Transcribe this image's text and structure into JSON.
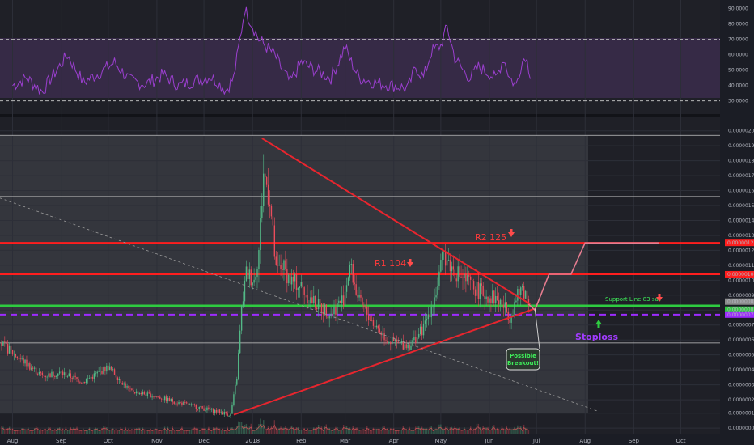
{
  "chart_data": [
    {
      "type": "line",
      "panel": "oscillator",
      "yticks": [
        "90.0000",
        "80.0000",
        "70.0000",
        "60.0000",
        "50.0000",
        "40.0000",
        "30.0000"
      ],
      "ylim": [
        23,
        93
      ],
      "overbought": 70,
      "oversold": 30,
      "series_color": "#9b3fcf",
      "series": [
        {
          "x": [
            "2017-08-01",
            "2017-08-10",
            "2017-08-20",
            "2017-08-25",
            "2017-09-05",
            "2017-09-15",
            "2017-09-25",
            "2017-10-05",
            "2017-10-15",
            "2017-10-25",
            "2017-11-05",
            "2017-11-15",
            "2017-11-25",
            "2017-12-05",
            "2017-12-10",
            "2017-12-15",
            "2017-12-20",
            "2017-12-24",
            "2017-12-27",
            "2018-01-01",
            "2018-01-05",
            "2018-01-10",
            "2018-01-15",
            "2018-01-20",
            "2018-01-25",
            "2018-02-01",
            "2018-02-10",
            "2018-02-20",
            "2018-03-01",
            "2018-03-05",
            "2018-03-10",
            "2018-03-20",
            "2018-04-01",
            "2018-04-10",
            "2018-04-15",
            "2018-04-20",
            "2018-04-25",
            "2018-05-01",
            "2018-05-05",
            "2018-05-10",
            "2018-05-15",
            "2018-05-20",
            "2018-05-25",
            "2018-06-01",
            "2018-06-05",
            "2018-06-10",
            "2018-06-14",
            "2018-06-18",
            "2018-06-21",
            "2018-06-24",
            "2018-06-27"
          ],
          "values": [
            40,
            45,
            36,
            44,
            60,
            42,
            48,
            55,
            43,
            41,
            47,
            40,
            43,
            46,
            42,
            37,
            45,
            70,
            90,
            79,
            70,
            65,
            60,
            50,
            42,
            55,
            50,
            45,
            65,
            55,
            45,
            42,
            40,
            38,
            52,
            45,
            62,
            66,
            78,
            58,
            50,
            45,
            52,
            48,
            44,
            58,
            45,
            40,
            53,
            60,
            48
          ]
        }
      ]
    },
    {
      "type": "line",
      "panel": "price",
      "yticks": [
        "0.00000200",
        "0.00000190",
        "0.00000180",
        "0.00000170",
        "0.00000160",
        "0.00000150",
        "0.00000140",
        "0.00000130",
        "0.00000120",
        "0.00000110",
        "0.00000100",
        "0.00000090",
        "0.00000080",
        "0.00000070",
        "0.00000060",
        "0.00000050",
        "0.00000040",
        "0.00000030",
        "0.00000020",
        "0.00000011",
        "0.00000001"
      ],
      "ylim": [
        0,
        202
      ],
      "x_labels": [
        "Aug",
        "Sep",
        "Oct",
        "Nov",
        "Dec",
        "2018",
        "Feb",
        "Mar",
        "Apr",
        "May",
        "Jun",
        "Jul",
        "Aug",
        "Sep",
        "Oct"
      ],
      "x_label_dates": [
        "2017-08-01",
        "2017-09-01",
        "2017-10-01",
        "2017-11-01",
        "2017-12-01",
        "2018-01-01",
        "2018-02-01",
        "2018-03-01",
        "2018-04-01",
        "2018-05-01",
        "2018-06-01",
        "2018-07-01",
        "2018-08-01",
        "2018-09-01",
        "2018-10-01"
      ],
      "x_range": [
        "2017-07-24",
        "2018-10-26"
      ],
      "projection_start": "2018-06-26",
      "up_color": "#53b987",
      "down_color": "#eb4d5c",
      "price": {
        "x": [
          "2017-07-24",
          "2017-08-05",
          "2017-08-20",
          "2017-09-01",
          "2017-09-15",
          "2017-10-01",
          "2017-10-15",
          "2017-11-01",
          "2017-11-15",
          "2017-12-01",
          "2017-12-10",
          "2017-12-18",
          "2017-12-22",
          "2017-12-25",
          "2017-12-28",
          "2018-01-02",
          "2018-01-05",
          "2018-01-08",
          "2018-01-12",
          "2018-01-16",
          "2018-01-20",
          "2018-01-25",
          "2018-02-01",
          "2018-02-06",
          "2018-02-12",
          "2018-02-20",
          "2018-02-28",
          "2018-03-04",
          "2018-03-10",
          "2018-03-20",
          "2018-03-28",
          "2018-04-05",
          "2018-04-12",
          "2018-04-20",
          "2018-04-28",
          "2018-05-03",
          "2018-05-08",
          "2018-05-15",
          "2018-05-22",
          "2018-05-30",
          "2018-06-05",
          "2018-06-10",
          "2018-06-14",
          "2018-06-18",
          "2018-06-22",
          "2018-06-26"
        ],
        "values": [
          58,
          48,
          36,
          38,
          32,
          42,
          26,
          22,
          18,
          14,
          12,
          10,
          35,
          80,
          105,
          100,
          120,
          172,
          155,
          105,
          110,
          100,
          96,
          88,
          83,
          78,
          88,
          110,
          85,
          70,
          60,
          57,
          57,
          68,
          92,
          118,
          108,
          102,
          95,
          90,
          88,
          83,
          76,
          87,
          95,
          86
        ]
      }
    }
  ],
  "horizontal_levels": [
    {
      "value": 197,
      "color": "#c8c8c8",
      "style": "solid"
    },
    {
      "value": 156,
      "color": "#c8c8c8",
      "style": "solid"
    },
    {
      "value": 125,
      "color": "#ff1e1e",
      "style": "solid",
      "label": "R2 125",
      "axis_badge": "0.00000125"
    },
    {
      "value": 104,
      "color": "#ff1e1e",
      "style": "solid",
      "label": "R1 104",
      "axis_badge": "0.00000104"
    },
    {
      "value": 83,
      "color": "#2ecc40",
      "style": "solid",
      "label": "Support Line 83 sat",
      "axis_badge_dark": "0.00000084",
      "axis_badge": "0.00000083"
    },
    {
      "value": 77,
      "color": "#9d2bff",
      "style": "dashed",
      "axis_badge": "0.00000077"
    },
    {
      "value": 58,
      "color": "#c8c8c8",
      "style": "solid"
    }
  ],
  "trendlines": [
    {
      "name": "descending-resistance",
      "color": "#e8252e",
      "from": [
        "2018-01-07",
        195
      ],
      "to": [
        "2018-06-27",
        84
      ]
    },
    {
      "name": "ascending-support",
      "color": "#e8252e",
      "from": [
        "2017-12-20",
        10
      ],
      "to": [
        "2018-06-30",
        81
      ]
    },
    {
      "name": "long-term-dashed",
      "color": "#9a9a9a",
      "from": [
        "2017-07-24",
        155
      ],
      "to": [
        "2018-08-10",
        12
      ]
    }
  ],
  "annotations": {
    "r2": "R2 125",
    "r1": "R1 104",
    "support": "Support Line 83 sat",
    "stoploss": "Stoploss",
    "breakout": [
      "Possible",
      "Breakout!"
    ]
  },
  "projection_path": [
    [
      "2018-06-26",
      84
    ],
    [
      "2018-06-30",
      80
    ],
    [
      "2018-07-09",
      104
    ],
    [
      "2018-07-23",
      104
    ],
    [
      "2018-08-01",
      125
    ],
    [
      "2018-09-17",
      125
    ]
  ],
  "colors": {
    "background": "#1b1d25",
    "pane": "#2a2b33",
    "oscillator_band": "#3a2a4a",
    "axis_text": "#b2b5be",
    "resistance": "#ff1e1e",
    "support": "#2ecc40",
    "stoploss": "#9d2bff",
    "projection": "#e57c8f"
  }
}
